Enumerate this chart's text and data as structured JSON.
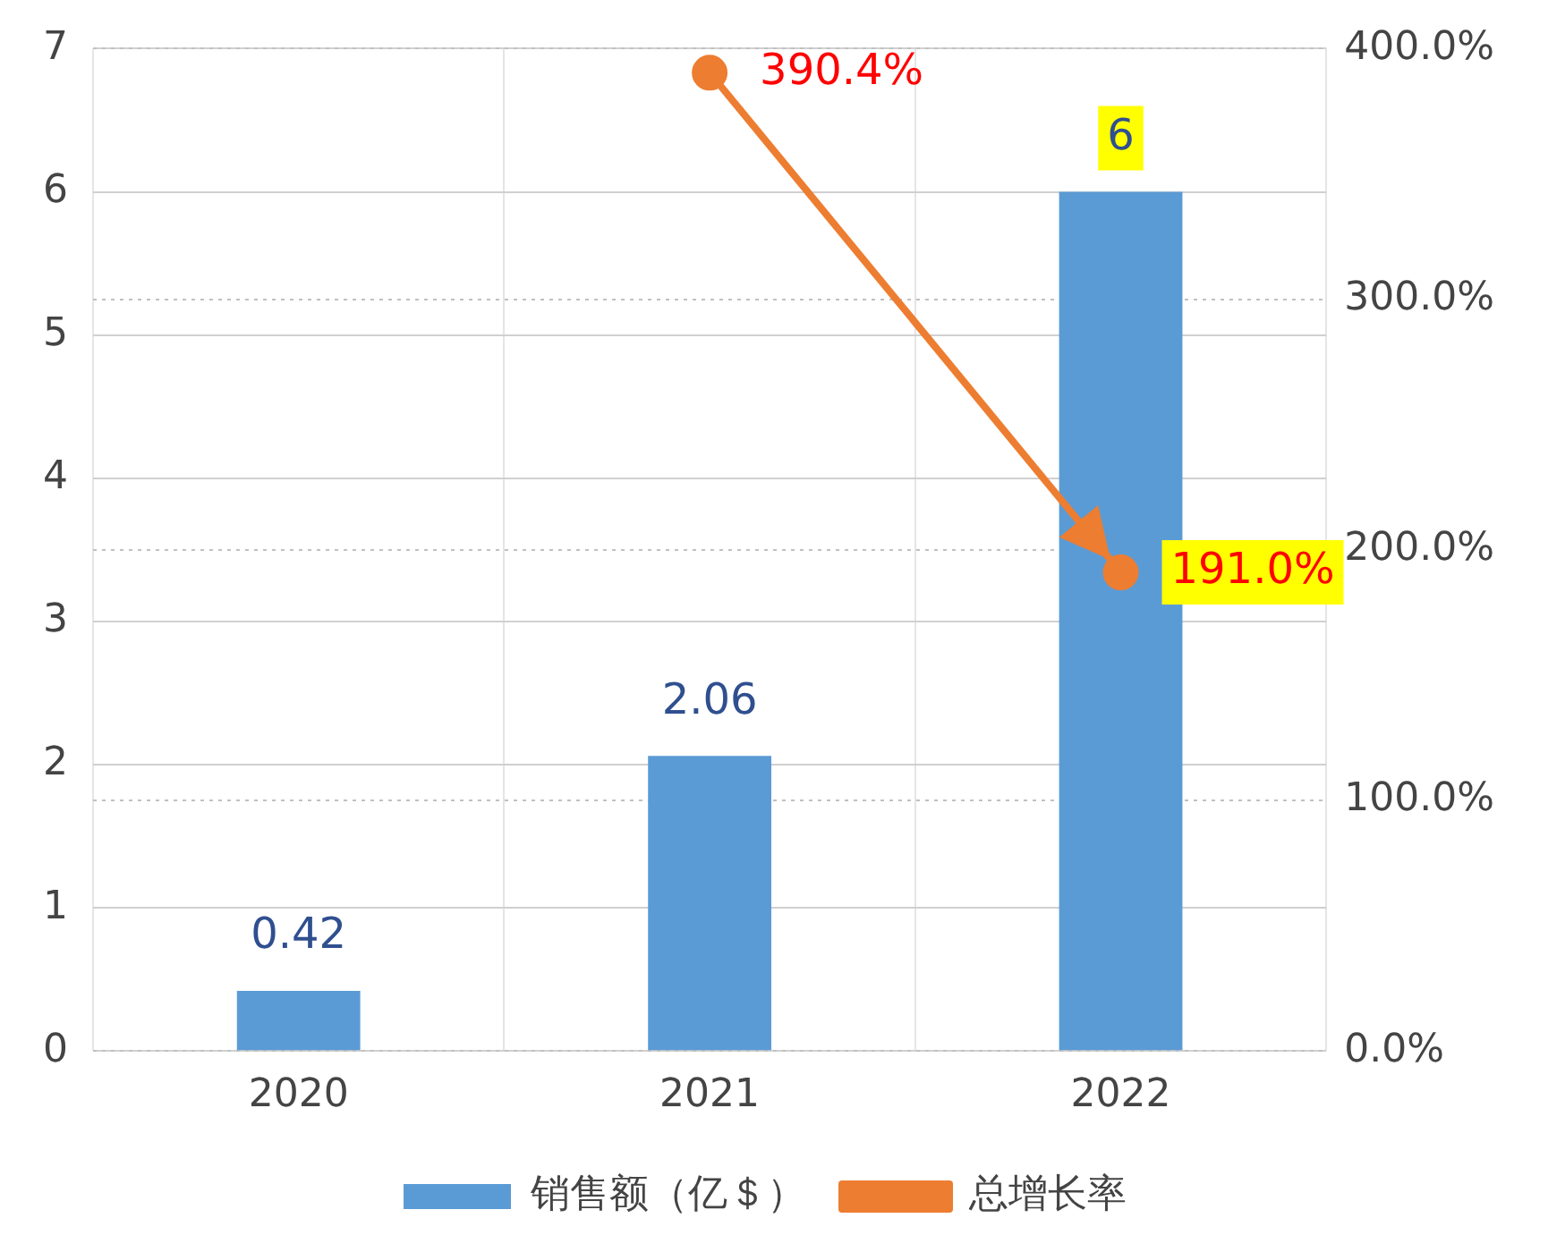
{
  "chart_data": {
    "type": "bar",
    "categories": [
      "2020",
      "2021",
      "2022"
    ],
    "series": [
      {
        "name": "销售额（亿＄）",
        "color": "#5b9bd5",
        "values": [
          0.42,
          2.06,
          6
        ]
      },
      {
        "name": "总增长率",
        "type": "line",
        "axis": "y2",
        "color": "#ed7d31",
        "values": [
          null,
          390.4,
          191.0
        ]
      }
    ],
    "ylim": [
      0,
      7
    ],
    "yticks": [
      0,
      1,
      2,
      3,
      4,
      5,
      6,
      7
    ],
    "y2lim": [
      0,
      400
    ],
    "y2ticks": [
      {
        "value": 0,
        "label": "0.0%"
      },
      {
        "value": 100,
        "label": "100.0%"
      },
      {
        "value": 200,
        "label": "200.0%"
      },
      {
        "value": 300,
        "label": "300.0%"
      },
      {
        "value": 400,
        "label": "400.0%"
      }
    ],
    "value_labels": [
      [
        "0.42",
        "2.06",
        "6"
      ],
      [
        null,
        "390.4%",
        "191.0%"
      ]
    ],
    "grid": true,
    "legend": "bottom",
    "marker": "circle"
  }
}
